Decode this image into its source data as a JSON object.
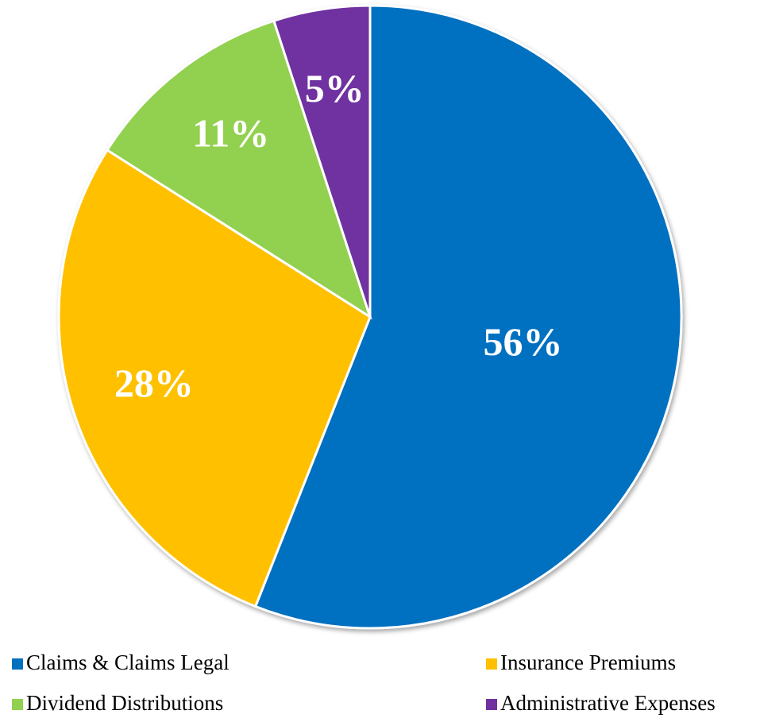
{
  "chart_data": {
    "type": "pie",
    "categories": [
      "Claims & Claims Legal",
      "Insurance Premiums",
      "Dividend Distributions",
      "Administrative Expenses"
    ],
    "values": [
      56,
      28,
      11,
      5
    ],
    "value_labels": [
      "56%",
      "28%",
      "11%",
      "5%"
    ],
    "colors": [
      "#0070c0",
      "#ffc000",
      "#92d050",
      "#7030a0"
    ],
    "legend": "bottom"
  }
}
